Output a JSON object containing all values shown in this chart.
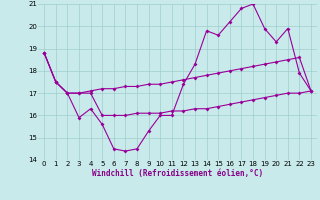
{
  "xlabel": "Windchill (Refroidissement éolien,°C)",
  "background_color": "#c8eaea",
  "grid_color": "#a0cccc",
  "line_color": "#990099",
  "hours": [
    0,
    1,
    2,
    3,
    4,
    5,
    6,
    7,
    8,
    9,
    10,
    11,
    12,
    13,
    14,
    15,
    16,
    17,
    18,
    19,
    20,
    21,
    22,
    23
  ],
  "line1": [
    18.8,
    17.5,
    17.0,
    15.9,
    16.3,
    15.6,
    14.5,
    14.4,
    14.5,
    15.3,
    16.0,
    16.0,
    17.4,
    18.3,
    19.8,
    19.6,
    20.2,
    20.8,
    21.0,
    19.9,
    19.3,
    19.9,
    17.9,
    17.1
  ],
  "line2": [
    18.8,
    17.5,
    17.0,
    17.0,
    17.1,
    17.2,
    17.2,
    17.3,
    17.3,
    17.4,
    17.4,
    17.5,
    17.6,
    17.7,
    17.8,
    17.9,
    18.0,
    18.1,
    18.2,
    18.3,
    18.4,
    18.5,
    18.6,
    17.1
  ],
  "line3": [
    18.8,
    17.5,
    17.0,
    17.0,
    17.0,
    16.0,
    16.0,
    16.0,
    16.1,
    16.1,
    16.1,
    16.2,
    16.2,
    16.3,
    16.3,
    16.4,
    16.5,
    16.6,
    16.7,
    16.8,
    16.9,
    17.0,
    17.0,
    17.1
  ],
  "ylim": [
    14,
    21
  ],
  "yticks": [
    14,
    15,
    16,
    17,
    18,
    19,
    20,
    21
  ],
  "xticks": [
    0,
    1,
    2,
    3,
    4,
    5,
    6,
    7,
    8,
    9,
    10,
    11,
    12,
    13,
    14,
    15,
    16,
    17,
    18,
    19,
    20,
    21,
    22,
    23
  ],
  "markersize": 2.0,
  "linewidth": 0.8,
  "tick_fontsize": 5.0,
  "xlabel_fontsize": 5.5
}
